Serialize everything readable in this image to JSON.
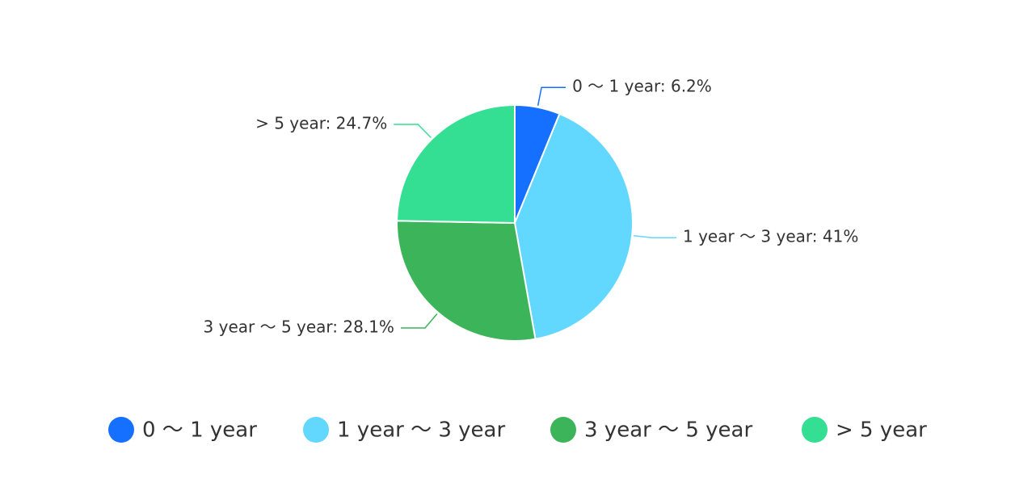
{
  "chart_data": {
    "type": "pie",
    "categories": [
      "0 ～ 1 year",
      "1 year ～ 3 year",
      "3 year ～ 5 year",
      "> 5 year"
    ],
    "values": [
      6.2,
      41,
      28.1,
      24.7
    ],
    "value_labels": [
      "0 ～ 1 year: 6.2%",
      "1 year ～ 3 year: 41%",
      "3 year ～ 5 year: 28.1%",
      "> 5 year: 24.7%"
    ],
    "colors": [
      "#1570ff",
      "#62d7ff",
      "#3cb45a",
      "#34de92"
    ],
    "legend": "bottom"
  }
}
